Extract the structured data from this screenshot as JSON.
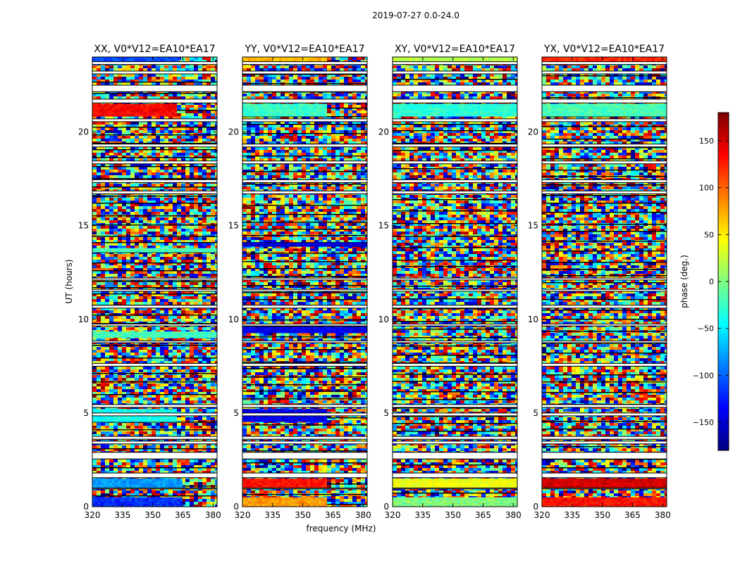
{
  "chart_data": {
    "type": "heatmap",
    "title": "2019-07-27 0.0-24.0",
    "xlabel": "frequency (MHz)",
    "ylabel": "UT (hours)",
    "xlim": [
      320,
      382
    ],
    "ylim": [
      0,
      24
    ],
    "x_ticks": [
      "320",
      "335",
      "350",
      "365",
      "380"
    ],
    "x_tick_values": [
      320,
      335,
      350,
      365,
      380
    ],
    "y_ticks": [
      "0",
      "5",
      "10",
      "15",
      "20"
    ],
    "y_tick_values": [
      0,
      5,
      10,
      15,
      20
    ],
    "colorbar": {
      "label": "phase (deg.)",
      "range": [
        -180,
        180
      ],
      "ticks": [
        "−150",
        "−100",
        "−50",
        "0",
        "50",
        "100",
        "150"
      ],
      "tick_values": [
        -150,
        -100,
        -50,
        0,
        50,
        100,
        150
      ],
      "colormap": [
        "#00007f",
        "#0000ff",
        "#007fff",
        "#00ffff",
        "#7fff7f",
        "#ffff00",
        "#ff7f00",
        "#ff0000",
        "#7f0000"
      ]
    },
    "flagged_ut_bands": [
      [
        0.95,
        1.0
      ],
      [
        1.55,
        1.8
      ],
      [
        2.55,
        2.9
      ],
      [
        3.35,
        3.5
      ],
      [
        3.6,
        3.75
      ],
      [
        4.85,
        5.0
      ],
      [
        5.3,
        5.45
      ],
      [
        7.5,
        7.65
      ],
      [
        8.75,
        8.85
      ],
      [
        9.65,
        9.75
      ],
      [
        10.6,
        10.75
      ],
      [
        11.5,
        11.6
      ],
      [
        12.1,
        12.2
      ],
      [
        16.7,
        16.85
      ],
      [
        17.3,
        17.45
      ],
      [
        18.3,
        18.45
      ],
      [
        19.2,
        19.35
      ],
      [
        20.55,
        20.7
      ],
      [
        21.55,
        21.75
      ],
      [
        22.15,
        22.5
      ],
      [
        23.1,
        23.25
      ],
      [
        23.6,
        23.75
      ]
    ],
    "series": [
      {
        "name": "XX, V0*V12=EA10*EA17",
        "coherent_bands": [
          {
            "ut": [
              0.0,
              0.5
            ],
            "phase": -120,
            "freq_end": 364
          },
          {
            "ut": [
              1.0,
              1.5
            ],
            "phase": -80,
            "freq_end": 364
          },
          {
            "ut": [
              20.85,
              21.5
            ],
            "phase": 135,
            "freq_end": 362
          },
          {
            "ut": [
              23.75,
              24.0
            ],
            "phase": -110,
            "freq_end": 363
          },
          {
            "ut": [
              9.1,
              9.35
            ],
            "phase": -20,
            "freq_end": 382
          },
          {
            "ut": [
              13.6,
              13.8
            ],
            "phase": -20,
            "freq_end": 382
          },
          {
            "ut": [
              4.6,
              5.2
            ],
            "phase": -40,
            "freq_end": 362
          }
        ]
      },
      {
        "name": "YY, V0*V12=EA10*EA17",
        "coherent_bands": [
          {
            "ut": [
              0.0,
              0.5
            ],
            "phase": 80,
            "freq_end": 362
          },
          {
            "ut": [
              1.0,
              1.5
            ],
            "phase": 130,
            "freq_end": 362
          },
          {
            "ut": [
              20.85,
              21.5
            ],
            "phase": -25,
            "freq_end": 362
          },
          {
            "ut": [
              23.75,
              24.0
            ],
            "phase": 70,
            "freq_end": 361
          },
          {
            "ut": [
              9.35,
              9.6
            ],
            "phase": -140,
            "freq_end": 382
          },
          {
            "ut": [
              13.9,
              14.1
            ],
            "phase": -150,
            "freq_end": 382
          },
          {
            "ut": [
              4.6,
              5.2
            ],
            "phase": -140,
            "freq_end": 362
          }
        ]
      },
      {
        "name": "XY, V0*V12=EA10*EA17",
        "coherent_bands": [
          {
            "ut": [
              0.0,
              0.5
            ],
            "phase": 0,
            "freq_end": 382
          },
          {
            "ut": [
              1.0,
              1.5
            ],
            "phase": 40,
            "freq_end": 382
          },
          {
            "ut": [
              20.85,
              21.5
            ],
            "phase": -30,
            "freq_end": 382
          },
          {
            "ut": [
              23.75,
              24.0
            ],
            "phase": 20,
            "freq_end": 382
          }
        ]
      },
      {
        "name": "YX, V0*V12=EA10*EA17",
        "coherent_bands": [
          {
            "ut": [
              0.0,
              0.5
            ],
            "phase": 130,
            "freq_end": 382
          },
          {
            "ut": [
              1.0,
              1.5
            ],
            "phase": 150,
            "freq_end": 382
          },
          {
            "ut": [
              20.85,
              21.5
            ],
            "phase": -20,
            "freq_end": 382
          },
          {
            "ut": [
              23.75,
              24.0
            ],
            "phase": 120,
            "freq_end": 382
          }
        ]
      }
    ]
  }
}
